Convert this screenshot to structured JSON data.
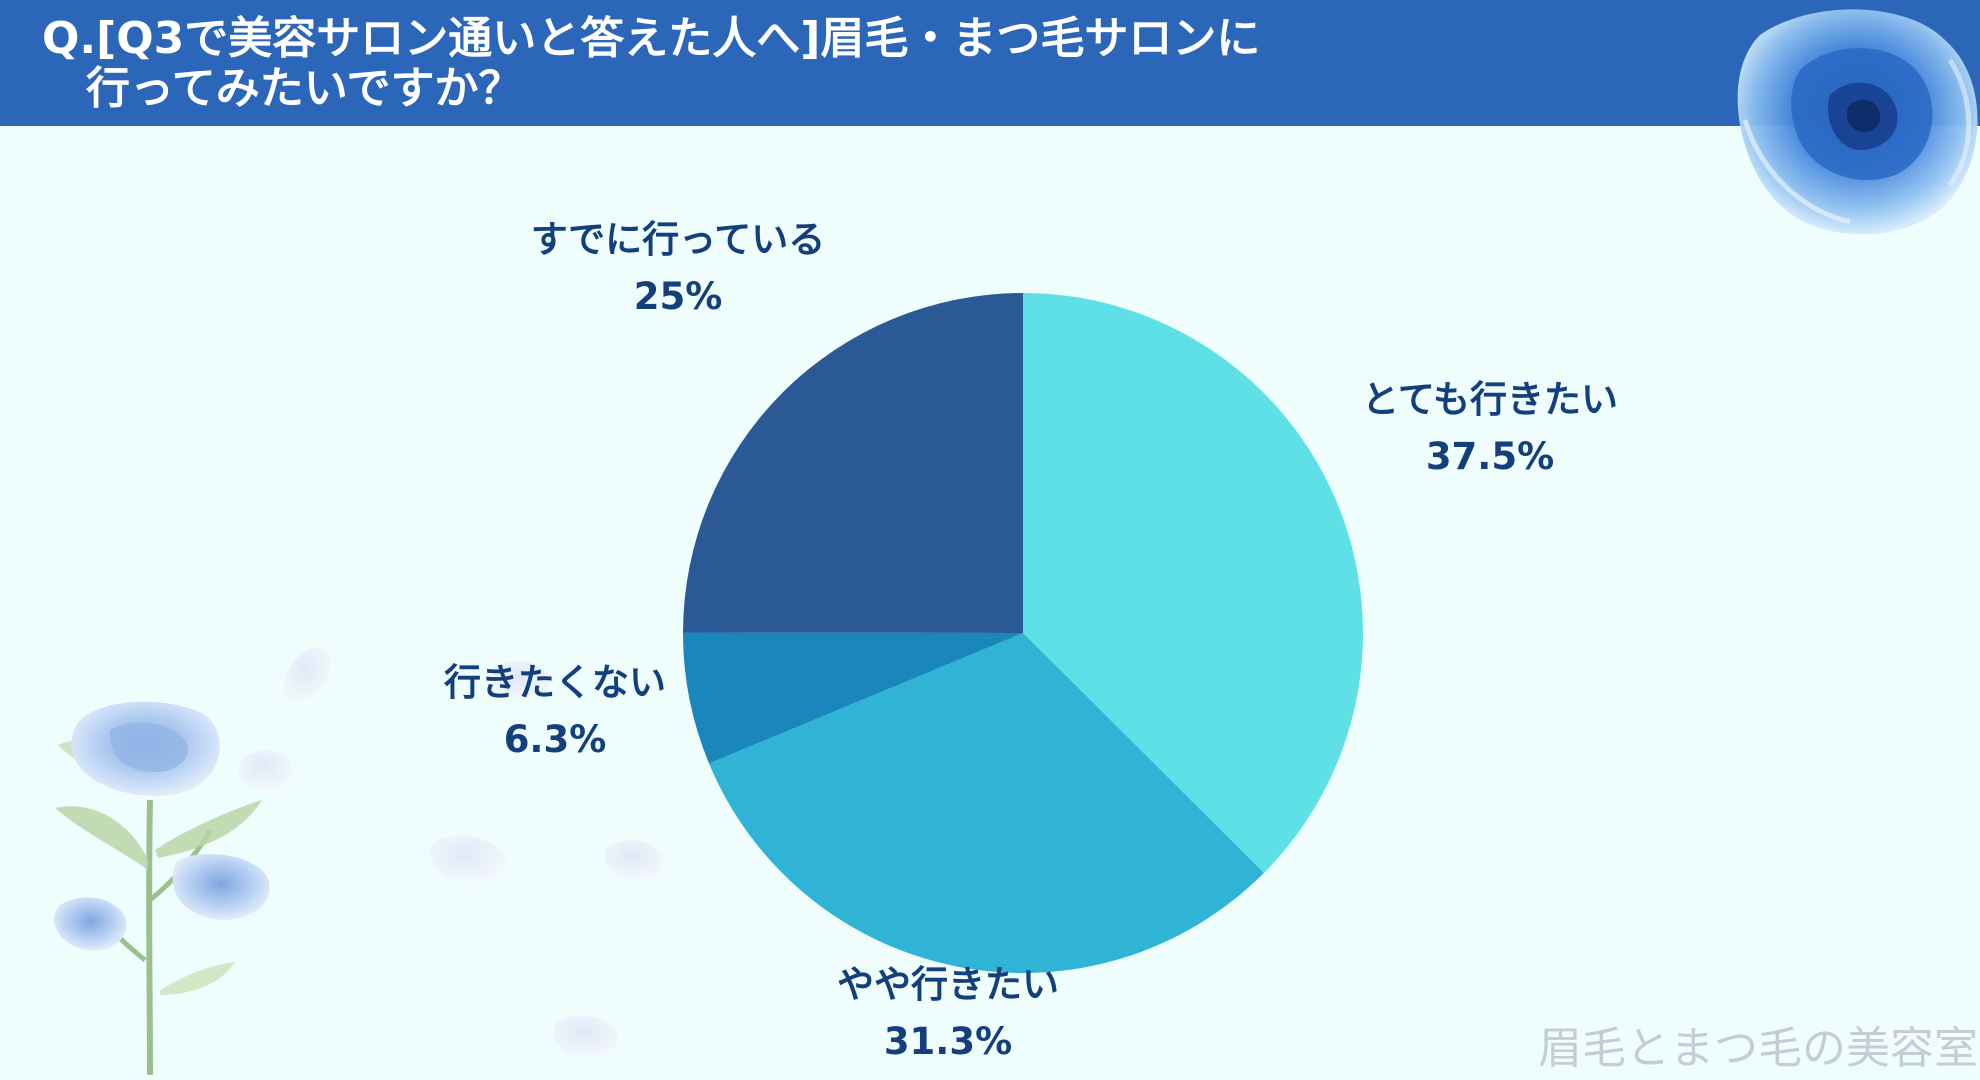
{
  "header": {
    "title": "Q.[Q3で美容サロン通いと答えた人へ]眉毛・まつ毛サロンに\n　行ってみたいですか？"
  },
  "chart_data": {
    "type": "pie",
    "title": "",
    "start_angle_deg": 0,
    "direction": "clockwise",
    "slices": [
      {
        "label": "とても行きたい",
        "value": 37.5,
        "value_label": "37.5%",
        "color": "#5fe0e6"
      },
      {
        "label": "やや行きたい",
        "value": 31.3,
        "value_label": "31.3%",
        "color": "#2fb4d6"
      },
      {
        "label": "行きたくない",
        "value": 6.3,
        "value_label": "6.3%",
        "color": "#1a86bb"
      },
      {
        "label": "すでに行っている",
        "value": 25,
        "value_label": "25%",
        "color": "#2a5995"
      }
    ]
  },
  "footer": {
    "watermark": "眉毛とまつ毛の美容室"
  },
  "decorations": {
    "icons": [
      "blue-rose-icon",
      "rose-bouquet-icon",
      "petal-icon"
    ]
  }
}
